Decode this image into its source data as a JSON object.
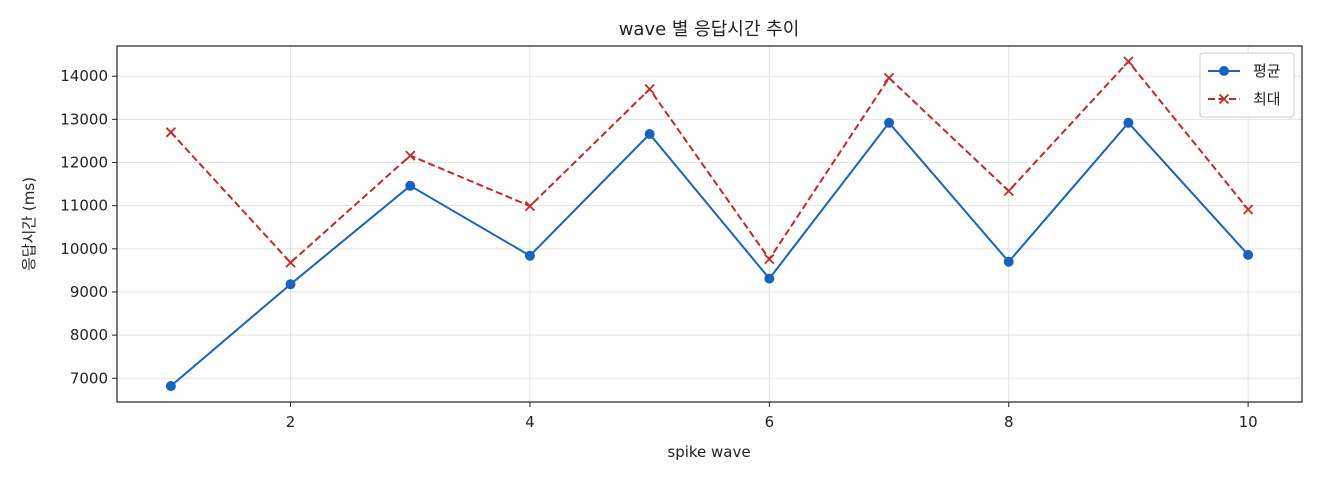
{
  "chart_data": {
    "type": "line",
    "title": "wave 별 응답시간 추이",
    "xlabel": "spike wave",
    "ylabel": "응답시간 (ms)",
    "x": [
      1,
      2,
      3,
      4,
      5,
      6,
      7,
      8,
      9,
      10
    ],
    "xlim": [
      0.55,
      10.45
    ],
    "ylim": [
      6450,
      14700
    ],
    "xticks": [
      2,
      4,
      6,
      8,
      10
    ],
    "yticks": [
      7000,
      8000,
      9000,
      10000,
      11000,
      12000,
      13000,
      14000
    ],
    "grid": true,
    "legend_position": "top-right",
    "series": [
      {
        "name": "평균",
        "color": "#1565c0",
        "line_style": "solid",
        "marker": "circle",
        "values": [
          6820,
          9180,
          11460,
          9840,
          12660,
          9310,
          12920,
          9700,
          12920,
          9860
        ]
      },
      {
        "name": "최대",
        "color": "#c62828",
        "line_style": "dashed",
        "marker": "x",
        "values": [
          12700,
          9680,
          12160,
          10990,
          13700,
          9760,
          13960,
          11340,
          14340,
          10910
        ]
      }
    ]
  }
}
